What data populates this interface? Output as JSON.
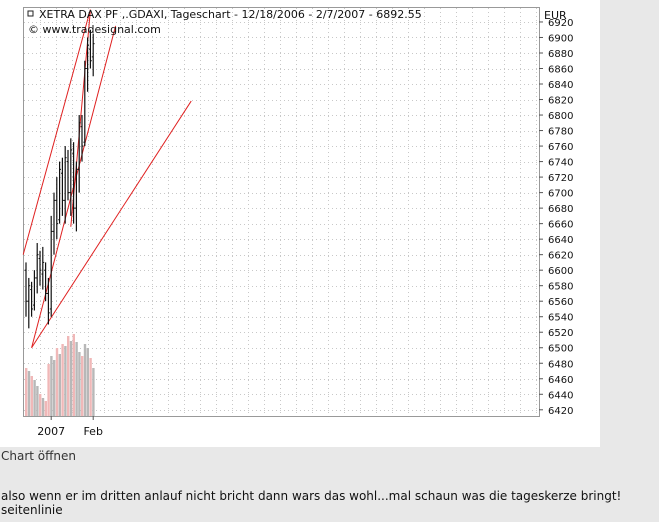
{
  "chart_link_label": "Chart öffnen",
  "post": {
    "line1": "also wenn er im dritten anlauf nicht bricht dann wars das wohl...mal schaun was die tageskerze bringt!",
    "line2": "seitenlinie"
  },
  "chart_data": {
    "type": "ohlc",
    "title": "XETRA DAX PF ,.GDAXI, Tageschart - 12/18/2006 - 2/7/2007 - 6892.55",
    "source": "© www.tradesignal.com",
    "currency": "EUR",
    "ylim": [
      6412,
      6938
    ],
    "yticks": [
      6420,
      6440,
      6460,
      6480,
      6500,
      6520,
      6540,
      6560,
      6580,
      6600,
      6620,
      6640,
      6660,
      6680,
      6700,
      6720,
      6740,
      6760,
      6780,
      6800,
      6820,
      6840,
      6860,
      6880,
      6900,
      6920
    ],
    "xlabels": [
      {
        "label": "2007",
        "index": 9
      },
      {
        "label": "Feb",
        "index": 24
      }
    ],
    "grid": true,
    "bars": [
      {
        "high": 6610,
        "low": 6540,
        "open": 6600,
        "close": 6560
      },
      {
        "high": 6590,
        "low": 6525,
        "open": 6560,
        "close": 6580
      },
      {
        "high": 6585,
        "low": 6540,
        "open": 6575,
        "close": 6550
      },
      {
        "high": 6600,
        "low": 6548,
        "open": 6555,
        "close": 6590
      },
      {
        "high": 6635,
        "low": 6570,
        "open": 6590,
        "close": 6620
      },
      {
        "high": 6625,
        "low": 6580,
        "open": 6615,
        "close": 6600
      },
      {
        "high": 6630,
        "low": 6575,
        "open": 6595,
        "close": 6610
      },
      {
        "high": 6610,
        "low": 6560,
        "open": 6600,
        "close": 6570
      },
      {
        "high": 6590,
        "low": 6530,
        "open": 6570,
        "close": 6545
      },
      {
        "high": 6670,
        "low": 6540,
        "open": 6550,
        "close": 6650
      },
      {
        "high": 6700,
        "low": 6620,
        "open": 6650,
        "close": 6690
      },
      {
        "high": 6720,
        "low": 6640,
        "open": 6690,
        "close": 6660
      },
      {
        "high": 6740,
        "low": 6660,
        "open": 6665,
        "close": 6730
      },
      {
        "high": 6745,
        "low": 6670,
        "open": 6725,
        "close": 6690
      },
      {
        "high": 6760,
        "low": 6660,
        "open": 6690,
        "close": 6745
      },
      {
        "high": 6755,
        "low": 6690,
        "open": 6740,
        "close": 6700
      },
      {
        "high": 6770,
        "low": 6670,
        "open": 6700,
        "close": 6755
      },
      {
        "high": 6765,
        "low": 6660,
        "open": 6750,
        "close": 6680
      },
      {
        "high": 6740,
        "low": 6650,
        "open": 6680,
        "close": 6730
      },
      {
        "high": 6800,
        "low": 6700,
        "open": 6730,
        "close": 6790
      },
      {
        "high": 6800,
        "low": 6740,
        "open": 6785,
        "close": 6760
      },
      {
        "high": 6870,
        "low": 6760,
        "open": 6765,
        "close": 6860
      },
      {
        "high": 6900,
        "low": 6830,
        "open": 6860,
        "close": 6890
      },
      {
        "high": 6910,
        "low": 6860,
        "open": 6885,
        "close": 6870
      },
      {
        "high": 6905,
        "low": 6850,
        "open": 6875,
        "close": 6892
      }
    ],
    "volume": [
      48,
      45,
      40,
      36,
      30,
      22,
      18,
      15,
      52,
      60,
      56,
      68,
      62,
      72,
      70,
      80,
      75,
      82,
      74,
      64,
      60,
      72,
      68,
      58,
      48
    ],
    "trendlines": [
      {
        "x1": -1,
        "y1": 6620,
        "x2": 23,
        "y2": 6936
      },
      {
        "x1": 16,
        "y1": 6656,
        "x2": 23,
        "y2": 6935
      },
      {
        "x1": 2,
        "y1": 6500,
        "x2": 32,
        "y2": 6915
      },
      {
        "x1": 2,
        "y1": 6500,
        "x2": 59,
        "y2": 6818
      }
    ],
    "colors": {
      "bar": "#111111",
      "trendline": "#e02020",
      "volume_up": "#b8b8b8",
      "volume_down": "#f0b8b8",
      "grid": "#c8c8c8"
    }
  }
}
